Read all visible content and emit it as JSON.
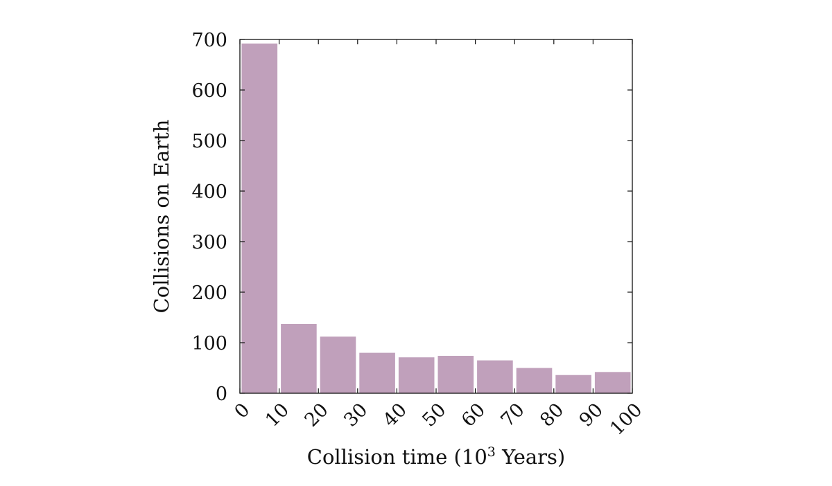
{
  "chart_data": {
    "type": "bar",
    "xlabel": "Collision time (10",
    "xlabel_sup": "3",
    "xlabel_suffix": " Years)",
    "ylabel": "Collisions on Earth",
    "bin_edges": [
      0,
      10,
      20,
      30,
      40,
      50,
      60,
      70,
      80,
      90,
      100
    ],
    "values": [
      692,
      137,
      112,
      80,
      71,
      74,
      65,
      50,
      36,
      42
    ],
    "xlim": [
      0,
      100
    ],
    "ylim": [
      0,
      700
    ],
    "xticks": [
      "0",
      "10",
      "20",
      "30",
      "40",
      "50",
      "60",
      "70",
      "80",
      "90",
      "100"
    ],
    "yticks": [
      "0",
      "100",
      "200",
      "300",
      "400",
      "500",
      "600",
      "700"
    ],
    "bar_color": "#c0a0bb",
    "grid": false
  }
}
